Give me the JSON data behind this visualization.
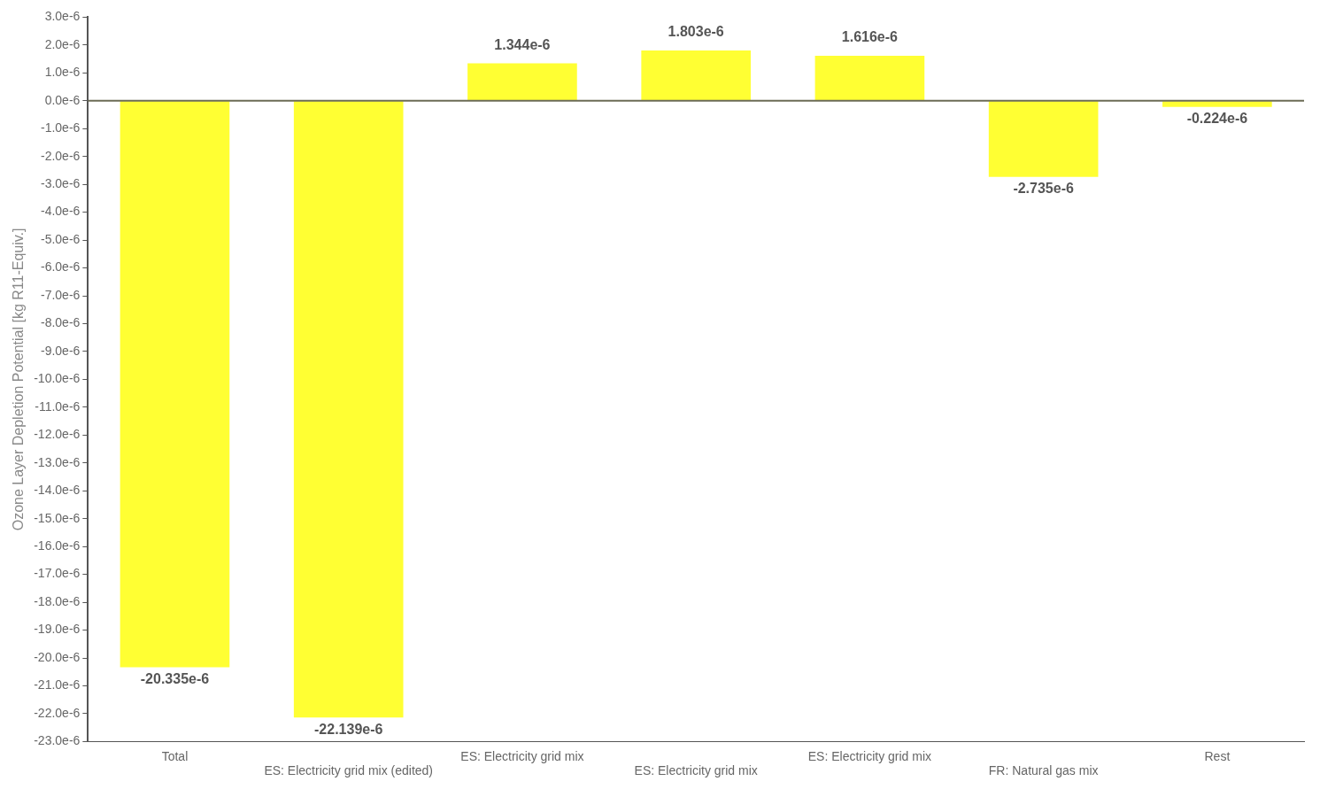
{
  "chart_data": {
    "type": "bar",
    "ylabel": "Ozone Layer Depletion Potential [kg R11-Equiv.]",
    "categories": [
      "Total",
      "ES: Electricity grid mix (edited)",
      "ES: Electricity grid mix",
      "ES: Electricity grid mix",
      "ES: Electricity grid mix",
      "FR: Natural gas mix",
      "Rest"
    ],
    "values": [
      -2.0335e-05,
      -2.2139e-05,
      1.344e-06,
      1.803e-06,
      1.616e-06,
      -2.735e-06,
      -2.24e-07
    ],
    "value_labels": [
      "-20.335e-6",
      "-22.139e-6",
      "1.344e-6",
      "1.803e-6",
      "1.616e-6",
      "-2.735e-6",
      "-0.224e-6"
    ],
    "color": "#ffff33",
    "ylim": [
      -2.3e-05,
      3e-06
    ],
    "yticks": [
      {
        "value": 3e-06,
        "label": "3.0e-6"
      },
      {
        "value": 2e-06,
        "label": "2.0e-6"
      },
      {
        "value": 1e-06,
        "label": "1.0e-6"
      },
      {
        "value": 0,
        "label": "0.0e-6"
      },
      {
        "value": -1e-06,
        "label": "-1.0e-6"
      },
      {
        "value": -2e-06,
        "label": "-2.0e-6"
      },
      {
        "value": -3e-06,
        "label": "-3.0e-6"
      },
      {
        "value": -4e-06,
        "label": "-4.0e-6"
      },
      {
        "value": -5e-06,
        "label": "-5.0e-6"
      },
      {
        "value": -6e-06,
        "label": "-6.0e-6"
      },
      {
        "value": -7e-06,
        "label": "-7.0e-6"
      },
      {
        "value": -8e-06,
        "label": "-8.0e-6"
      },
      {
        "value": -9e-06,
        "label": "-9.0e-6"
      },
      {
        "value": -1e-05,
        "label": "-10.0e-6"
      },
      {
        "value": -1.1e-05,
        "label": "-11.0e-6"
      },
      {
        "value": -1.2e-05,
        "label": "-12.0e-6"
      },
      {
        "value": -1.3e-05,
        "label": "-13.0e-6"
      },
      {
        "value": -1.4e-05,
        "label": "-14.0e-6"
      },
      {
        "value": -1.5e-05,
        "label": "-15.0e-6"
      },
      {
        "value": -1.6e-05,
        "label": "-16.0e-6"
      },
      {
        "value": -1.7e-05,
        "label": "-17.0e-6"
      },
      {
        "value": -1.8e-05,
        "label": "-18.0e-6"
      },
      {
        "value": -1.9e-05,
        "label": "-19.0e-6"
      },
      {
        "value": -2e-05,
        "label": "-20.0e-6"
      },
      {
        "value": -2.1e-05,
        "label": "-21.0e-6"
      },
      {
        "value": -2.2e-05,
        "label": "-22.0e-6"
      },
      {
        "value": -2.3e-05,
        "label": "-23.0e-6"
      }
    ],
    "ref_lines": [
      {
        "axis": "y",
        "value": 0,
        "color": "#6b6b55"
      }
    ],
    "grid": false,
    "legend": false
  }
}
